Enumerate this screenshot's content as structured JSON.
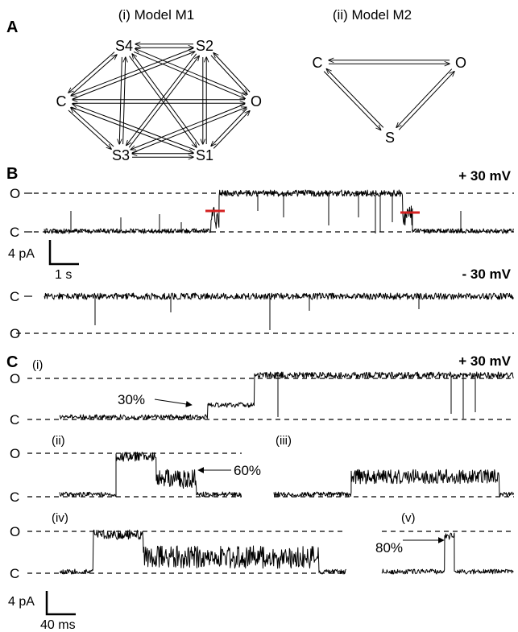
{
  "panelA": {
    "label": "A",
    "model1": {
      "title": "(i) Model M1",
      "nodes": {
        "S4": "S4",
        "S2": "S2",
        "C": "C",
        "O": "O",
        "S3": "S3",
        "S1": "S1"
      }
    },
    "model2": {
      "title": "(ii) Model M2",
      "nodes": {
        "C": "C",
        "O": "O",
        "S": "S"
      }
    }
  },
  "panelB": {
    "label": "B",
    "top": {
      "voltage": "+ 30 mV",
      "open": "O",
      "closed": "C"
    },
    "bottom": {
      "voltage": "- 30 mV",
      "open": "O",
      "closed": "C"
    },
    "scalebar": {
      "y": "4 pA",
      "x": "1 s"
    },
    "marker_color": "#d42020"
  },
  "panelC": {
    "label": "C",
    "voltage": "+ 30 mV",
    "sub_i": {
      "label": "(i)",
      "annotation": "30%",
      "open": "O",
      "closed": "C"
    },
    "sub_ii": {
      "label": "(ii)",
      "annotation": "60%",
      "open": "O",
      "closed": "C"
    },
    "sub_iii": {
      "label": "(iii)"
    },
    "sub_iv": {
      "label": "(iv)",
      "open": "O",
      "closed": "C"
    },
    "sub_v": {
      "label": "(v)",
      "annotation": "80%"
    },
    "scalebar": {
      "y": "4 pA",
      "x": "40 ms"
    }
  }
}
